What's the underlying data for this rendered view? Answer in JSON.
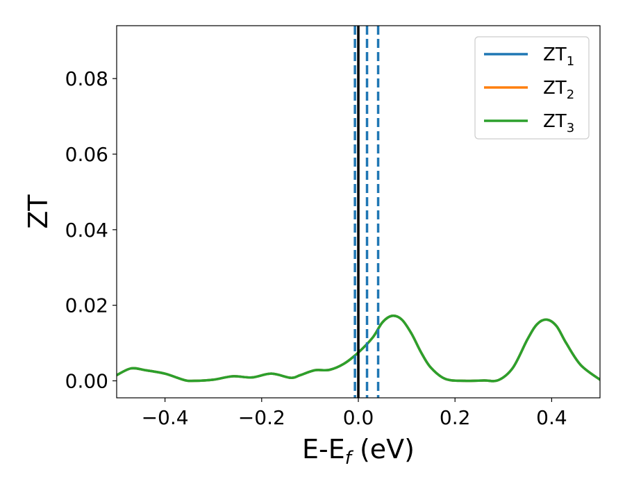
{
  "chart_data": {
    "type": "line",
    "xlabel": "E-E",
    "xlabel_subscript": "f",
    "xlabel_unit": " (eV)",
    "ylabel": "ZT",
    "xlim": [
      -0.5,
      0.5
    ],
    "ylim": [
      -0.0045,
      0.094
    ],
    "xticks": [
      -0.4,
      -0.2,
      0.0,
      0.2,
      0.4
    ],
    "xtick_labels": [
      "−0.4",
      "−0.2",
      "0.0",
      "0.2",
      "0.4"
    ],
    "yticks": [
      0.0,
      0.02,
      0.04,
      0.06,
      0.08
    ],
    "ytick_labels": [
      "0.00",
      "0.02",
      "0.04",
      "0.06",
      "0.08"
    ],
    "grid": false,
    "legend_position": "top-right",
    "vertical_lines": [
      {
        "x": 0.0,
        "style": "solid",
        "color": "#000000"
      },
      {
        "x": -0.007,
        "style": "dashed",
        "color": "#1f77b4"
      },
      {
        "x": 0.018,
        "style": "dashed",
        "color": "#1f77b4"
      },
      {
        "x": 0.041,
        "style": "dashed",
        "color": "#1f77b4"
      }
    ],
    "series": [
      {
        "name": "ZT",
        "name_subscript": "1",
        "color": "#1f77b4",
        "x": [
          -0.5,
          -0.47,
          -0.44,
          -0.4,
          -0.36,
          -0.34,
          -0.3,
          -0.26,
          -0.22,
          -0.18,
          -0.14,
          -0.12,
          -0.09,
          -0.06,
          -0.03,
          0.0,
          0.03,
          0.05,
          0.07,
          0.09,
          0.11,
          0.13,
          0.15,
          0.18,
          0.22,
          0.26,
          0.29,
          0.32,
          0.35,
          0.37,
          0.39,
          0.41,
          0.43,
          0.46,
          0.5
        ],
        "values": [
          0.0015,
          0.0033,
          0.0028,
          0.0019,
          0.0002,
          0.0,
          0.0003,
          0.0012,
          0.0009,
          0.0019,
          0.0008,
          0.0015,
          0.0028,
          0.0029,
          0.0045,
          0.0075,
          0.0115,
          0.0155,
          0.0172,
          0.0162,
          0.0125,
          0.0075,
          0.0035,
          0.0005,
          0.0,
          0.0001,
          0.0002,
          0.0035,
          0.011,
          0.015,
          0.0162,
          0.0145,
          0.01,
          0.0042,
          0.0003
        ]
      },
      {
        "name": "ZT",
        "name_subscript": "2",
        "color": "#ff7f0e",
        "x": [
          -0.5,
          -0.47,
          -0.44,
          -0.4,
          -0.36,
          -0.34,
          -0.3,
          -0.26,
          -0.22,
          -0.18,
          -0.14,
          -0.12,
          -0.09,
          -0.06,
          -0.03,
          0.0,
          0.03,
          0.05,
          0.07,
          0.09,
          0.11,
          0.13,
          0.15,
          0.18,
          0.22,
          0.26,
          0.29,
          0.32,
          0.35,
          0.37,
          0.39,
          0.41,
          0.43,
          0.46,
          0.5
        ],
        "values": [
          0.0015,
          0.0033,
          0.0028,
          0.0019,
          0.0002,
          0.0,
          0.0003,
          0.0012,
          0.0009,
          0.0019,
          0.0008,
          0.0015,
          0.0028,
          0.0029,
          0.0045,
          0.0075,
          0.0115,
          0.0155,
          0.0172,
          0.0162,
          0.0125,
          0.0075,
          0.0035,
          0.0005,
          0.0,
          0.0001,
          0.0002,
          0.0035,
          0.011,
          0.015,
          0.0162,
          0.0145,
          0.01,
          0.0042,
          0.0003
        ]
      },
      {
        "name": "ZT",
        "name_subscript": "3",
        "color": "#2ca02c",
        "x": [
          -0.5,
          -0.47,
          -0.44,
          -0.4,
          -0.36,
          -0.34,
          -0.3,
          -0.26,
          -0.22,
          -0.18,
          -0.14,
          -0.12,
          -0.09,
          -0.06,
          -0.03,
          0.0,
          0.03,
          0.05,
          0.07,
          0.09,
          0.11,
          0.13,
          0.15,
          0.18,
          0.22,
          0.26,
          0.29,
          0.32,
          0.35,
          0.37,
          0.39,
          0.41,
          0.43,
          0.46,
          0.5
        ],
        "values": [
          0.0015,
          0.0033,
          0.0028,
          0.0019,
          0.0002,
          0.0,
          0.0003,
          0.0012,
          0.0009,
          0.0019,
          0.0008,
          0.0015,
          0.0028,
          0.0029,
          0.0045,
          0.0075,
          0.0115,
          0.0155,
          0.0172,
          0.0162,
          0.0125,
          0.0075,
          0.0035,
          0.0005,
          0.0,
          0.0001,
          0.0002,
          0.0035,
          0.011,
          0.015,
          0.0162,
          0.0145,
          0.01,
          0.0042,
          0.0003
        ]
      }
    ]
  }
}
